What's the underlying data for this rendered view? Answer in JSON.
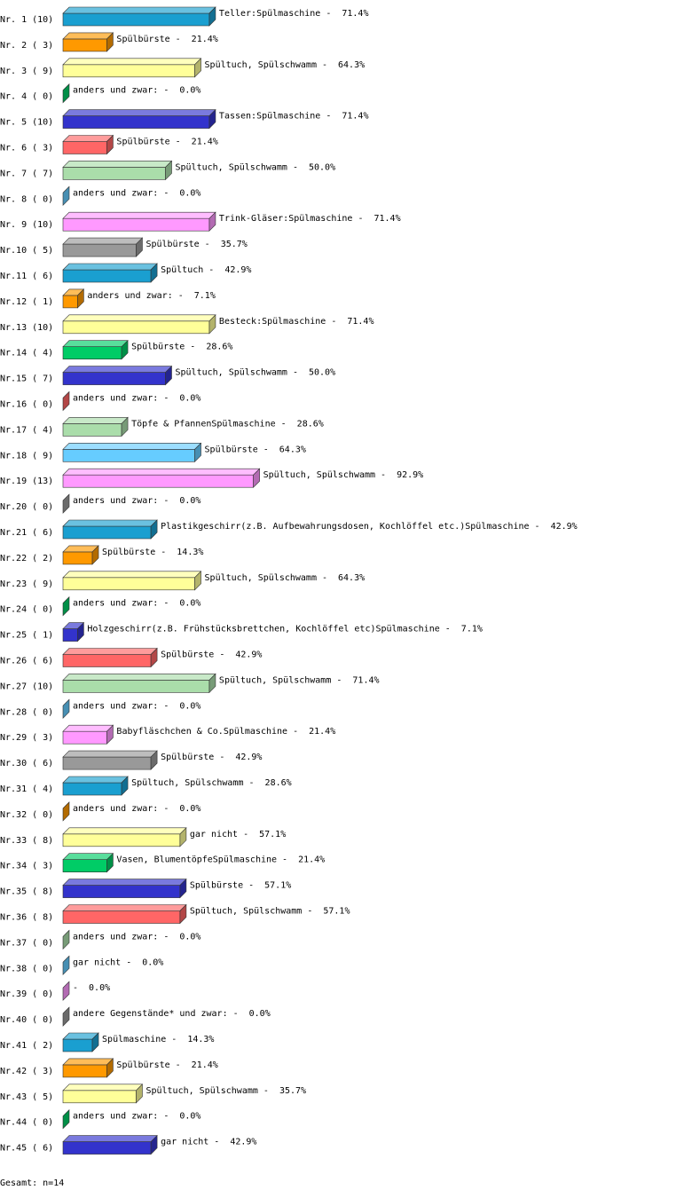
{
  "chart_data": {
    "type": "bar3d",
    "categories": [
      "Nr. 1 (10)",
      "Nr. 2 ( 3)",
      "Nr. 3 ( 9)",
      "Nr. 4 ( 0)",
      "Nr. 5 (10)",
      "Nr. 6 ( 3)",
      "Nr. 7 ( 7)",
      "Nr. 8 ( 0)",
      "Nr. 9 (10)",
      "Nr.10 ( 5)",
      "Nr.11 ( 6)",
      "Nr.12 ( 1)",
      "Nr.13 (10)",
      "Nr.14 ( 4)",
      "Nr.15 ( 7)",
      "Nr.16 ( 0)",
      "Nr.17 ( 4)",
      "Nr.18 ( 9)",
      "Nr.19 (13)",
      "Nr.20 ( 0)",
      "Nr.21 ( 6)",
      "Nr.22 ( 2)",
      "Nr.23 ( 9)",
      "Nr.24 ( 0)",
      "Nr.25 ( 1)",
      "Nr.26 ( 6)",
      "Nr.27 (10)",
      "Nr.28 ( 0)",
      "Nr.29 ( 3)",
      "Nr.30 ( 6)",
      "Nr.31 ( 4)",
      "Nr.32 ( 0)",
      "Nr.33 ( 8)",
      "Nr.34 ( 3)",
      "Nr.35 ( 8)",
      "Nr.36 ( 8)",
      "Nr.37 ( 0)",
      "Nr.38 ( 0)",
      "Nr.39 ( 0)",
      "Nr.40 ( 0)",
      "Nr.41 ( 2)",
      "Nr.42 ( 3)",
      "Nr.43 ( 5)",
      "Nr.44 ( 0)",
      "Nr.45 ( 6)"
    ],
    "bar_labels": [
      "Teller:Spülmaschine -",
      "Spülbürste -",
      "Spültuch, Spülschwamm -",
      "anders und zwar: -",
      "Tassen:Spülmaschine -",
      "Spülbürste -",
      "Spültuch, Spülschwamm -",
      "anders und zwar: -",
      "Trink-Gläser:Spülmaschine -",
      "Spülbürste -",
      "Spültuch -",
      "anders und zwar: -",
      "Besteck:Spülmaschine -",
      "Spülbürste -",
      "Spültuch, Spülschwamm -",
      "anders und zwar: -",
      "Töpfe & PfannenSpülmaschine -",
      "Spülbürste -",
      "Spültuch, Spülschwamm -",
      "anders und zwar: -",
      "Plastikgeschirr(z.B. Aufbewahrungsdosen, Kochlöffel etc.)Spülmaschine -",
      "Spülbürste -",
      "Spültuch, Spülschwamm -",
      "anders und zwar: -",
      "Holzgeschirr(z.B. Frühstücksbrettchen, Kochlöffel etc)Spülmaschine -",
      "Spülbürste -",
      "Spültuch, Spülschwamm -",
      "anders und zwar: -",
      "Babyfläschchen & Co.Spülmaschine -",
      "Spülbürste -",
      "Spültuch, Spülschwamm -",
      "anders und zwar: -",
      "gar nicht -",
      "Vasen, BlumentöpfeSpülmaschine -",
      "Spülbürste -",
      "Spültuch, Spülschwamm -",
      "anders und zwar: -",
      "gar nicht -",
      "-",
      "andere Gegenstände* und zwar: -",
      "Spülmaschine -",
      "Spülbürste -",
      "Spültuch, Spülschwamm -",
      "anders und zwar: -",
      "gar nicht -"
    ],
    "values": [
      71.4,
      21.4,
      64.3,
      0,
      71.4,
      21.4,
      50,
      0,
      71.4,
      35.7,
      42.9,
      7.1,
      71.4,
      28.6,
      50,
      0,
      28.6,
      64.3,
      92.9,
      0,
      42.9,
      14.3,
      64.3,
      0,
      7.1,
      42.9,
      71.4,
      0,
      21.4,
      42.9,
      28.6,
      0,
      57.1,
      21.4,
      57.1,
      57.1,
      0,
      0,
      0,
      0,
      14.3,
      21.4,
      35.7,
      0,
      42.9
    ],
    "value_labels": [
      "71.4%",
      "21.4%",
      "64.3%",
      "0.0%",
      "71.4%",
      "21.4%",
      "50.0%",
      "0.0%",
      "71.4%",
      "35.7%",
      "42.9%",
      "7.1%",
      "71.4%",
      "28.6%",
      "50.0%",
      "0.0%",
      "28.6%",
      "64.3%",
      "92.9%",
      "0.0%",
      "42.9%",
      "14.3%",
      "64.3%",
      "0.0%",
      "7.1%",
      "42.9%",
      "71.4%",
      "0.0%",
      "21.4%",
      "42.9%",
      "28.6%",
      "0.0%",
      "57.1%",
      "21.4%",
      "57.1%",
      "57.1%",
      "0.0%",
      "0.0%",
      "0.0%",
      "0.0%",
      "14.3%",
      "21.4%",
      "35.7%",
      "0.0%",
      "42.9%"
    ],
    "colors": [
      "#1a9fd0",
      "#ff9900",
      "#ffff99",
      "#00cc66",
      "#3333cc",
      "#ff6666",
      "#aaddaa",
      "#66ccff",
      "#ff99ff",
      "#999999",
      "#1a9fd0",
      "#ff9900",
      "#ffff99",
      "#00cc66",
      "#3333cc",
      "#ff6666",
      "#aaddaa",
      "#66ccff",
      "#ff99ff",
      "#999999",
      "#1a9fd0",
      "#ff9900",
      "#ffff99",
      "#00cc66",
      "#3333cc",
      "#ff6666",
      "#aaddaa",
      "#66ccff",
      "#ff99ff",
      "#999999",
      "#1a9fd0",
      "#ff9900",
      "#ffff99",
      "#00cc66",
      "#3333cc",
      "#ff6666",
      "#aaddaa",
      "#66ccff",
      "#ff99ff",
      "#999999",
      "#1a9fd0",
      "#ff9900",
      "#ffff99",
      "#00cc66",
      "#3333cc"
    ],
    "footer": "Gesamt: n=14"
  }
}
